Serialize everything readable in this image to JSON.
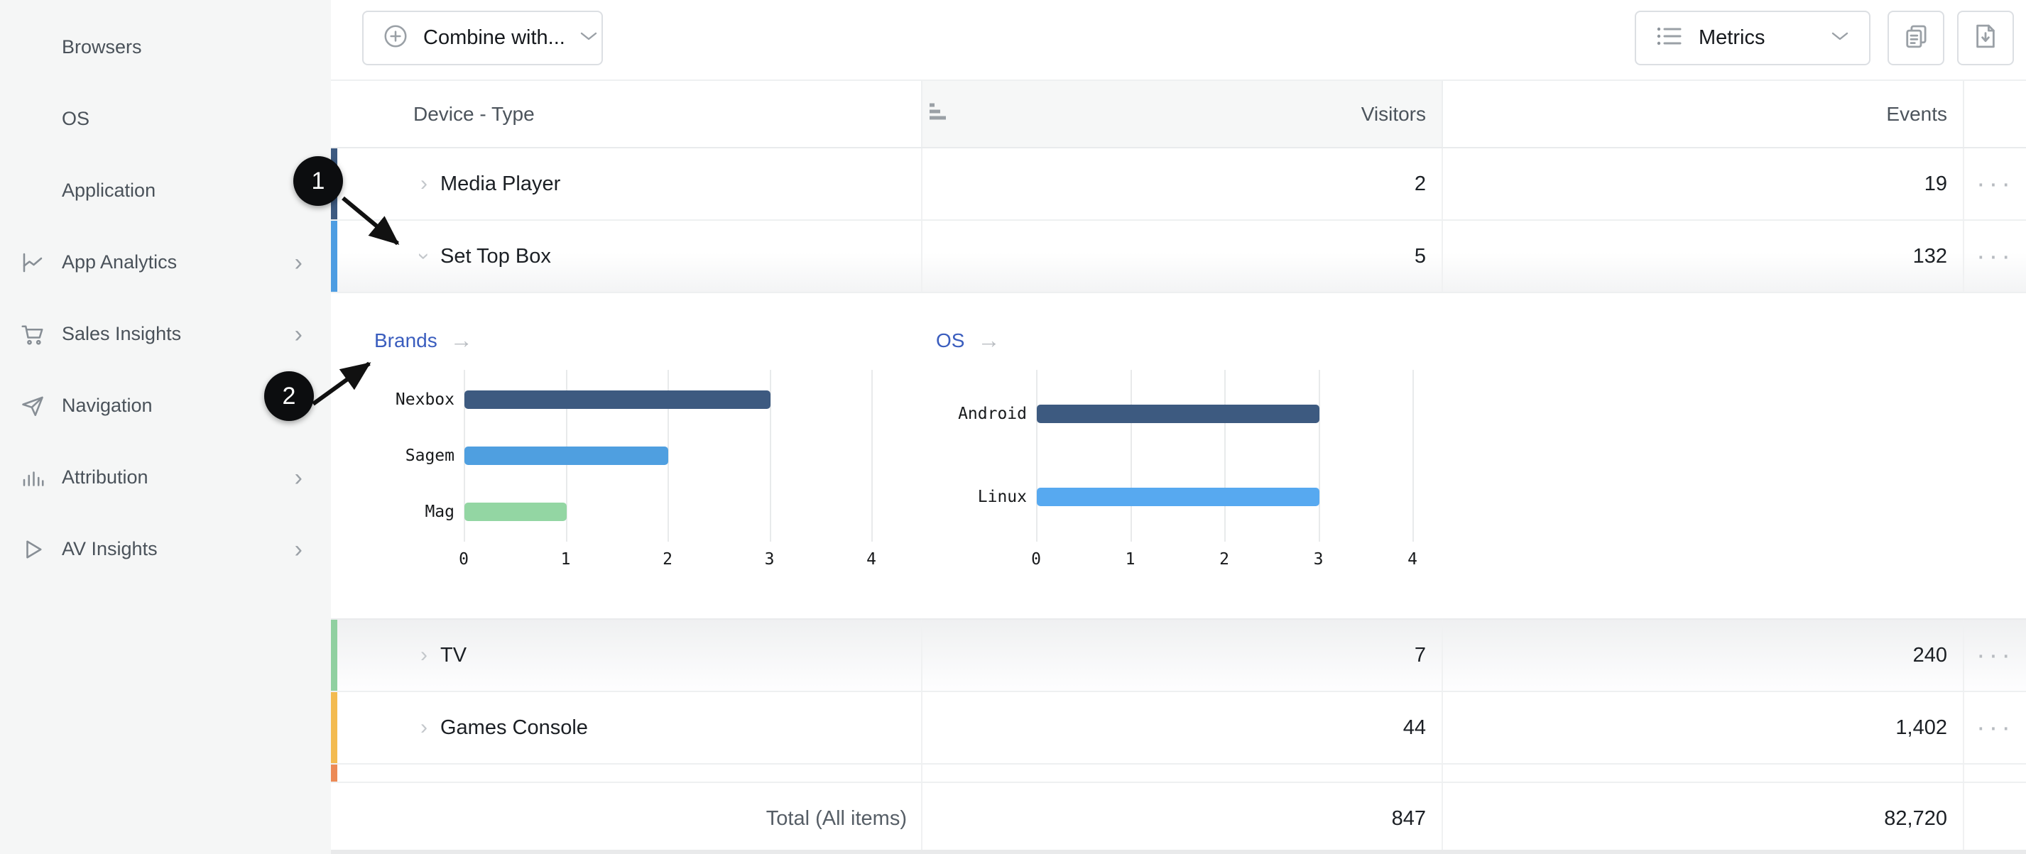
{
  "sidebar": {
    "items": [
      {
        "label": "Browsers",
        "icon": null,
        "chevron": false
      },
      {
        "label": "OS",
        "icon": null,
        "chevron": false
      },
      {
        "label": "Application",
        "icon": null,
        "chevron": false
      },
      {
        "label": "App Analytics",
        "icon": "line-chart-icon",
        "chevron": true
      },
      {
        "label": "Sales Insights",
        "icon": "cart-icon",
        "chevron": true
      },
      {
        "label": "Navigation",
        "icon": "paper-plane-icon",
        "chevron": true
      },
      {
        "label": "Attribution",
        "icon": "bar-chart-icon",
        "chevron": true
      },
      {
        "label": "AV Insights",
        "icon": "play-icon",
        "chevron": true
      }
    ]
  },
  "toolbar": {
    "combine_label": "Combine with...",
    "metrics_label": "Metrics",
    "copy_button_icon": "copy-icon",
    "export_button_icon": "export-icon"
  },
  "table": {
    "columns": [
      {
        "label": "Device - Type"
      },
      {
        "label": "Visitors",
        "sorted": true
      },
      {
        "label": "Events"
      }
    ],
    "rows": [
      {
        "label": "Media Player",
        "visitors": "2",
        "events": "19",
        "indicator_color": "#3d5a80",
        "expanded": false
      },
      {
        "label": "Set Top Box",
        "visitors": "5",
        "events": "132",
        "indicator_color": "#4d9de2",
        "expanded": true
      },
      {
        "label": "TV",
        "visitors": "7",
        "events": "240",
        "indicator_color": "#90d0a0",
        "expanded": false
      },
      {
        "label": "Games Console",
        "visitors": "44",
        "events": "1,402",
        "indicator_color": "#f3bb50",
        "expanded": false
      }
    ],
    "partial_row_indicator_color": "#ec8a56",
    "total": {
      "label": "Total (All items)",
      "visitors": "847",
      "events": "82,720"
    }
  },
  "chart_data": [
    {
      "type": "bar",
      "orientation": "horizontal",
      "title": "Brands",
      "categories": [
        "Nexbox",
        "Sagem",
        "Mag"
      ],
      "values": [
        3,
        2,
        1
      ],
      "colors": [
        "#3d5a80",
        "#4f9fe0",
        "#93d6a3"
      ],
      "xlim": [
        0,
        4
      ],
      "xticks": [
        0,
        1,
        2,
        3,
        4
      ],
      "grid": true,
      "legend": "none",
      "title_is_link": true
    },
    {
      "type": "bar",
      "orientation": "horizontal",
      "title": "OS",
      "categories": [
        "Android",
        "Linux"
      ],
      "values": [
        3,
        3
      ],
      "colors": [
        "#3d5a80",
        "#57a9f0"
      ],
      "xlim": [
        0,
        4
      ],
      "xticks": [
        0,
        1,
        2,
        3,
        4
      ],
      "grid": true,
      "legend": "none",
      "title_is_link": true
    }
  ],
  "annotations": [
    {
      "label": "1"
    },
    {
      "label": "2"
    }
  ],
  "icons": {
    "chevron_right": "›",
    "ellipsis": "···",
    "arrow_right": "→"
  },
  "colors": {
    "link_blue": "#3a5dbe",
    "navy": "#3d5a80",
    "blue": "#4d9de2",
    "light_blue": "#57a9f0",
    "green": "#90d0a0",
    "amber": "#f3bb50",
    "orange": "#ec8a56",
    "sidebar_bg": "#f5f6f6",
    "header_cell_bg": "#f6f7f7"
  }
}
